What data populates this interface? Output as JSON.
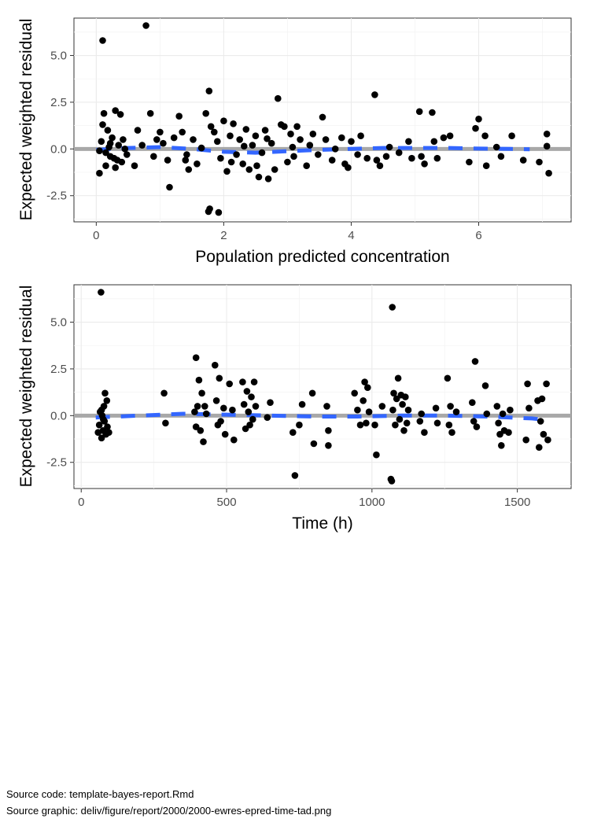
{
  "chart_data": [
    {
      "type": "scatter",
      "xlabel": "Population predicted concentration",
      "ylabel": "Expected weighted residual",
      "xlim": [
        -0.35,
        7.45
      ],
      "ylim": [
        -3.9,
        7.0
      ],
      "xticks": [
        0,
        2,
        4,
        6
      ],
      "yticks": [
        -2.5,
        0.0,
        2.5,
        5.0
      ],
      "ytick_labels": [
        "-2.5",
        "0.0",
        "2.5",
        "5.0"
      ],
      "grid": true,
      "reference_line_y": 0,
      "reference_color": "#a8a8a8",
      "smooth_color": "#3366ff",
      "point_color": "#000000",
      "smooth": [
        [
          0.0,
          -0.05
        ],
        [
          0.5,
          0.05
        ],
        [
          1.0,
          0.1
        ],
        [
          1.5,
          0.0
        ],
        [
          2.0,
          -0.15
        ],
        [
          2.5,
          -0.2
        ],
        [
          3.0,
          -0.12
        ],
        [
          3.5,
          -0.05
        ],
        [
          4.0,
          0.0
        ],
        [
          4.5,
          0.05
        ],
        [
          5.0,
          0.05
        ],
        [
          5.5,
          0.05
        ],
        [
          6.0,
          0.02
        ],
        [
          6.5,
          0.0
        ],
        [
          6.8,
          -0.02
        ]
      ],
      "points": [
        [
          0.1,
          5.8
        ],
        [
          0.78,
          6.6
        ],
        [
          1.77,
          3.1
        ],
        [
          2.85,
          2.7
        ],
        [
          4.37,
          2.9
        ],
        [
          5.07,
          2.0
        ],
        [
          5.27,
          1.95
        ],
        [
          6.0,
          1.6
        ],
        [
          5.95,
          1.1
        ],
        [
          7.07,
          0.8
        ],
        [
          7.07,
          0.15
        ],
        [
          7.1,
          -1.3
        ],
        [
          0.05,
          -1.3
        ],
        [
          0.15,
          -0.9
        ],
        [
          0.22,
          -0.4
        ],
        [
          0.1,
          1.3
        ],
        [
          0.12,
          1.9
        ],
        [
          0.3,
          2.05
        ],
        [
          0.38,
          1.85
        ],
        [
          0.18,
          1.0
        ],
        [
          0.25,
          0.6
        ],
        [
          0.35,
          0.2
        ],
        [
          0.28,
          -0.5
        ],
        [
          0.4,
          -0.7
        ],
        [
          0.08,
          0.4
        ],
        [
          0.2,
          0.1
        ],
        [
          0.45,
          0.0
        ],
        [
          0.3,
          -1.0
        ],
        [
          0.15,
          -0.2
        ],
        [
          0.48,
          -0.3
        ],
        [
          0.6,
          -0.9
        ],
        [
          0.65,
          1.0
        ],
        [
          0.85,
          1.9
        ],
        [
          0.72,
          0.2
        ],
        [
          0.9,
          -0.4
        ],
        [
          0.95,
          0.5
        ],
        [
          1.0,
          0.9
        ],
        [
          1.05,
          0.3
        ],
        [
          1.12,
          -0.6
        ],
        [
          1.15,
          -2.05
        ],
        [
          1.22,
          0.6
        ],
        [
          1.3,
          1.75
        ],
        [
          1.35,
          0.9
        ],
        [
          1.42,
          -0.3
        ],
        [
          1.45,
          -1.1
        ],
        [
          1.52,
          0.5
        ],
        [
          1.58,
          -0.8
        ],
        [
          1.65,
          0.05
        ],
        [
          1.72,
          1.9
        ],
        [
          1.78,
          -3.2
        ],
        [
          1.76,
          -3.35
        ],
        [
          1.92,
          -3.4
        ],
        [
          1.8,
          1.2
        ],
        [
          1.85,
          0.9
        ],
        [
          1.9,
          0.4
        ],
        [
          1.95,
          -0.5
        ],
        [
          2.0,
          1.5
        ],
        [
          2.05,
          -1.2
        ],
        [
          2.1,
          0.7
        ],
        [
          2.15,
          1.35
        ],
        [
          2.2,
          -0.3
        ],
        [
          2.25,
          0.5
        ],
        [
          2.3,
          -0.8
        ],
        [
          2.35,
          1.05
        ],
        [
          2.4,
          -1.1
        ],
        [
          2.45,
          0.2
        ],
        [
          2.5,
          0.7
        ],
        [
          2.55,
          -1.5
        ],
        [
          2.6,
          -0.2
        ],
        [
          2.65,
          1.0
        ],
        [
          2.7,
          -1.6
        ],
        [
          2.75,
          0.3
        ],
        [
          2.8,
          -1.1
        ],
        [
          2.9,
          1.3
        ],
        [
          2.95,
          1.2
        ],
        [
          3.0,
          -0.7
        ],
        [
          3.05,
          0.8
        ],
        [
          3.1,
          -0.4
        ],
        [
          3.15,
          1.2
        ],
        [
          3.2,
          0.5
        ],
        [
          3.3,
          -0.9
        ],
        [
          3.35,
          0.2
        ],
        [
          3.4,
          0.8
        ],
        [
          3.48,
          -0.3
        ],
        [
          3.55,
          1.7
        ],
        [
          3.6,
          0.5
        ],
        [
          3.7,
          -0.6
        ],
        [
          3.75,
          0.0
        ],
        [
          3.85,
          0.6
        ],
        [
          3.9,
          -0.8
        ],
        [
          3.95,
          -1.0
        ],
        [
          4.0,
          0.4
        ],
        [
          4.1,
          -0.3
        ],
        [
          4.15,
          0.7
        ],
        [
          4.25,
          -0.5
        ],
        [
          4.4,
          -0.6
        ],
        [
          4.45,
          -0.9
        ],
        [
          4.55,
          -0.4
        ],
        [
          4.6,
          0.1
        ],
        [
          4.75,
          -0.2
        ],
        [
          4.9,
          0.4
        ],
        [
          4.95,
          -0.5
        ],
        [
          5.1,
          -0.4
        ],
        [
          5.15,
          -0.8
        ],
        [
          5.3,
          0.4
        ],
        [
          5.35,
          -0.5
        ],
        [
          5.45,
          0.6
        ],
        [
          5.55,
          0.7
        ],
        [
          5.85,
          -0.7
        ],
        [
          6.1,
          0.7
        ],
        [
          6.12,
          -0.9
        ],
        [
          6.28,
          0.1
        ],
        [
          6.35,
          -0.4
        ],
        [
          6.52,
          0.7
        ],
        [
          6.7,
          -0.6
        ],
        [
          6.95,
          -0.7
        ],
        [
          0.05,
          -0.1
        ],
        [
          0.22,
          0.3
        ],
        [
          0.33,
          -0.6
        ],
        [
          0.42,
          0.5
        ],
        [
          1.4,
          -0.6
        ],
        [
          2.12,
          -0.7
        ],
        [
          2.32,
          0.15
        ],
        [
          2.52,
          -0.9
        ],
        [
          2.68,
          0.55
        ],
        [
          3.08,
          0.1
        ]
      ]
    },
    {
      "type": "scatter",
      "xlabel": "Time (h)",
      "ylabel": "Expected weighted residual",
      "xlim": [
        -25,
        1685
      ],
      "ylim": [
        -3.9,
        7.0
      ],
      "xticks": [
        0,
        500,
        1000,
        1500
      ],
      "yticks": [
        -2.5,
        0.0,
        2.5,
        5.0
      ],
      "ytick_labels": [
        "-2.5",
        "0.0",
        "2.5",
        "5.0"
      ],
      "grid": true,
      "reference_line_y": 0,
      "reference_color": "#a8a8a8",
      "smooth_color": "#3366ff",
      "point_color": "#000000",
      "smooth": [
        [
          50,
          -0.1
        ],
        [
          200,
          0.0
        ],
        [
          350,
          0.1
        ],
        [
          500,
          0.05
        ],
        [
          650,
          0.0
        ],
        [
          800,
          -0.05
        ],
        [
          950,
          -0.05
        ],
        [
          1100,
          0.0
        ],
        [
          1250,
          0.0
        ],
        [
          1400,
          -0.05
        ],
        [
          1550,
          -0.15
        ],
        [
          1580,
          -0.2
        ]
      ],
      "points": [
        [
          68,
          6.6
        ],
        [
          58,
          -0.9
        ],
        [
          62,
          -0.5
        ],
        [
          65,
          0.2
        ],
        [
          70,
          -1.2
        ],
        [
          72,
          0.0
        ],
        [
          75,
          -0.8
        ],
        [
          78,
          0.5
        ],
        [
          80,
          -0.3
        ],
        [
          82,
          1.2
        ],
        [
          85,
          -1.0
        ],
        [
          88,
          0.8
        ],
        [
          90,
          -0.6
        ],
        [
          95,
          -0.9
        ],
        [
          70,
          0.3
        ],
        [
          76,
          -0.2
        ],
        [
          285,
          1.2
        ],
        [
          290,
          -0.4
        ],
        [
          395,
          3.1
        ],
        [
          400,
          0.5
        ],
        [
          405,
          1.9
        ],
        [
          410,
          -0.8
        ],
        [
          415,
          1.2
        ],
        [
          420,
          -1.4
        ],
        [
          390,
          0.2
        ],
        [
          395,
          -0.6
        ],
        [
          425,
          0.5
        ],
        [
          430,
          0.1
        ],
        [
          460,
          2.7
        ],
        [
          465,
          0.8
        ],
        [
          470,
          -0.5
        ],
        [
          475,
          2.0
        ],
        [
          480,
          -0.3
        ],
        [
          490,
          0.4
        ],
        [
          495,
          -1.0
        ],
        [
          510,
          1.7
        ],
        [
          520,
          0.3
        ],
        [
          525,
          -1.3
        ],
        [
          555,
          1.8
        ],
        [
          560,
          0.6
        ],
        [
          565,
          -0.7
        ],
        [
          570,
          1.3
        ],
        [
          575,
          0.2
        ],
        [
          580,
          -0.5
        ],
        [
          585,
          1.0
        ],
        [
          590,
          -0.2
        ],
        [
          595,
          1.8
        ],
        [
          600,
          0.5
        ],
        [
          640,
          -0.1
        ],
        [
          650,
          0.7
        ],
        [
          728,
          -0.9
        ],
        [
          735,
          -3.2
        ],
        [
          750,
          -0.5
        ],
        [
          760,
          0.6
        ],
        [
          795,
          1.2
        ],
        [
          800,
          -1.5
        ],
        [
          845,
          0.5
        ],
        [
          850,
          -0.8
        ],
        [
          850,
          -1.6
        ],
        [
          940,
          1.2
        ],
        [
          950,
          0.3
        ],
        [
          960,
          -0.5
        ],
        [
          970,
          0.8
        ],
        [
          975,
          1.8
        ],
        [
          980,
          -0.4
        ],
        [
          985,
          1.5
        ],
        [
          990,
          0.2
        ],
        [
          1010,
          -0.5
        ],
        [
          1015,
          -2.1
        ],
        [
          1035,
          0.5
        ],
        [
          1065,
          -3.4
        ],
        [
          1068,
          -3.5
        ],
        [
          1070,
          5.8
        ],
        [
          1072,
          0.3
        ],
        [
          1075,
          1.2
        ],
        [
          1080,
          -0.5
        ],
        [
          1085,
          0.9
        ],
        [
          1090,
          2.0
        ],
        [
          1095,
          -0.2
        ],
        [
          1100,
          1.1
        ],
        [
          1105,
          0.6
        ],
        [
          1110,
          -0.8
        ],
        [
          1115,
          1.0
        ],
        [
          1120,
          -0.4
        ],
        [
          1125,
          0.3
        ],
        [
          1165,
          -0.3
        ],
        [
          1170,
          0.1
        ],
        [
          1180,
          -0.9
        ],
        [
          1220,
          0.4
        ],
        [
          1225,
          -0.4
        ],
        [
          1260,
          2.0
        ],
        [
          1265,
          -0.5
        ],
        [
          1270,
          0.5
        ],
        [
          1275,
          -0.9
        ],
        [
          1290,
          0.2
        ],
        [
          1345,
          0.7
        ],
        [
          1350,
          -0.3
        ],
        [
          1355,
          2.9
        ],
        [
          1360,
          -0.6
        ],
        [
          1390,
          1.6
        ],
        [
          1395,
          0.1
        ],
        [
          1430,
          0.5
        ],
        [
          1435,
          -0.4
        ],
        [
          1440,
          -1.0
        ],
        [
          1445,
          -1.6
        ],
        [
          1450,
          0.1
        ],
        [
          1455,
          -0.8
        ],
        [
          1470,
          -0.9
        ],
        [
          1475,
          0.3
        ],
        [
          1530,
          -1.3
        ],
        [
          1535,
          1.7
        ],
        [
          1540,
          0.4
        ],
        [
          1570,
          0.8
        ],
        [
          1575,
          -1.7
        ],
        [
          1580,
          -0.3
        ],
        [
          1585,
          0.9
        ],
        [
          1590,
          -1.0
        ],
        [
          1600,
          1.7
        ],
        [
          1605,
          -1.3
        ]
      ]
    }
  ],
  "captions": {
    "source_code": "Source code: template-bayes-report.Rmd",
    "source_graphic": "Source graphic: deliv/figure/report/2000/2000-ewres-epred-time-tad.png"
  }
}
